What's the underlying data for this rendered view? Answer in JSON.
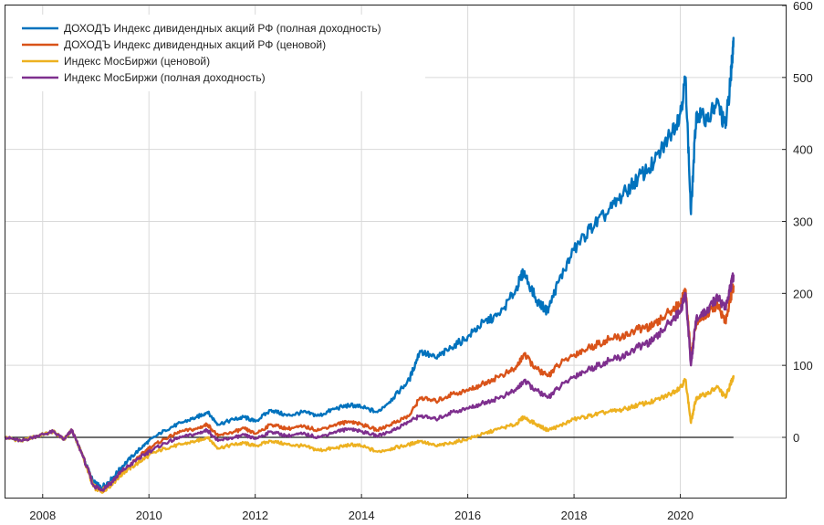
{
  "chart_data": {
    "type": "line",
    "title": "",
    "xlabel": "",
    "ylabel": "",
    "xlim": [
      2007.3,
      2022.0
    ],
    "ylim": [
      -85,
      600
    ],
    "grid": true,
    "legend_position": "top-left",
    "x_ticks": [
      2008,
      2010,
      2012,
      2014,
      2016,
      2018,
      2020
    ],
    "y_ticks": [
      0,
      100,
      200,
      300,
      400,
      500,
      600
    ],
    "reference_line_y": 0,
    "series": [
      {
        "name": "ДОХОДЪ Индекс дивидендных акций РФ (полная доходность)",
        "color": "#0072BD",
        "x": [
          2007.3,
          2007.6,
          2007.9,
          2008.2,
          2008.4,
          2008.55,
          2008.75,
          2008.95,
          2009.1,
          2009.3,
          2009.5,
          2009.8,
          2010.0,
          2010.3,
          2010.6,
          2010.9,
          2011.1,
          2011.3,
          2011.6,
          2011.8,
          2012.0,
          2012.3,
          2012.6,
          2012.9,
          2013.2,
          2013.5,
          2013.8,
          2014.0,
          2014.3,
          2014.6,
          2014.9,
          2015.1,
          2015.4,
          2015.7,
          2016.0,
          2016.3,
          2016.6,
          2016.9,
          2017.05,
          2017.3,
          2017.5,
          2017.7,
          2018.0,
          2018.3,
          2018.6,
          2018.9,
          2019.2,
          2019.5,
          2019.8,
          2020.0,
          2020.1,
          2020.2,
          2020.3,
          2020.5,
          2020.7,
          2020.85,
          2020.95,
          2021.0
        ],
        "values": [
          0,
          -5,
          2,
          8,
          -3,
          10,
          -25,
          -62,
          -70,
          -58,
          -40,
          -18,
          -5,
          10,
          20,
          28,
          35,
          18,
          25,
          28,
          22,
          38,
          30,
          35,
          30,
          40,
          45,
          42,
          35,
          55,
          80,
          120,
          110,
          125,
          140,
          160,
          170,
          205,
          230,
          190,
          175,
          215,
          260,
          290,
          310,
          335,
          360,
          380,
          420,
          450,
          500,
          310,
          450,
          440,
          465,
          430,
          500,
          555
        ]
      },
      {
        "name": "ДОХОДЪ Индекс дивидендных акций РФ (ценовой)",
        "color": "#D95319",
        "x": [
          2007.3,
          2007.6,
          2007.9,
          2008.2,
          2008.4,
          2008.55,
          2008.75,
          2008.95,
          2009.1,
          2009.3,
          2009.5,
          2009.8,
          2010.0,
          2010.3,
          2010.6,
          2010.9,
          2011.1,
          2011.3,
          2011.6,
          2011.8,
          2012.0,
          2012.3,
          2012.6,
          2012.9,
          2013.2,
          2013.5,
          2013.8,
          2014.0,
          2014.3,
          2014.6,
          2014.9,
          2015.1,
          2015.4,
          2015.7,
          2016.0,
          2016.3,
          2016.6,
          2016.9,
          2017.05,
          2017.3,
          2017.5,
          2017.7,
          2018.0,
          2018.3,
          2018.6,
          2018.9,
          2019.2,
          2019.5,
          2019.8,
          2020.0,
          2020.1,
          2020.2,
          2020.3,
          2020.5,
          2020.7,
          2020.85,
          2020.95,
          2021.0
        ],
        "values": [
          0,
          -5,
          2,
          8,
          -3,
          10,
          -25,
          -65,
          -75,
          -63,
          -48,
          -28,
          -15,
          -2,
          8,
          12,
          18,
          2,
          8,
          12,
          5,
          18,
          12,
          15,
          10,
          18,
          22,
          18,
          10,
          20,
          30,
          55,
          50,
          60,
          65,
          75,
          85,
          95,
          115,
          95,
          85,
          100,
          115,
          125,
          135,
          140,
          150,
          155,
          175,
          185,
          205,
          110,
          160,
          170,
          185,
          160,
          195,
          210
        ]
      },
      {
        "name": "Индекс МосБиржи (ценовой)",
        "color": "#EDB120",
        "x": [
          2007.3,
          2007.6,
          2007.9,
          2008.2,
          2008.4,
          2008.55,
          2008.75,
          2008.95,
          2009.1,
          2009.3,
          2009.5,
          2009.8,
          2010.0,
          2010.3,
          2010.6,
          2010.9,
          2011.1,
          2011.3,
          2011.6,
          2011.8,
          2012.0,
          2012.3,
          2012.6,
          2012.9,
          2013.2,
          2013.5,
          2013.8,
          2014.0,
          2014.3,
          2014.6,
          2014.9,
          2015.1,
          2015.4,
          2015.7,
          2016.0,
          2016.3,
          2016.6,
          2016.9,
          2017.05,
          2017.3,
          2017.5,
          2017.7,
          2018.0,
          2018.3,
          2018.6,
          2018.9,
          2019.2,
          2019.5,
          2019.8,
          2020.0,
          2020.1,
          2020.2,
          2020.3,
          2020.5,
          2020.7,
          2020.85,
          2020.95,
          2021.0
        ],
        "values": [
          0,
          -5,
          2,
          8,
          -3,
          10,
          -25,
          -68,
          -75,
          -65,
          -50,
          -35,
          -25,
          -15,
          -10,
          -5,
          0,
          -15,
          -10,
          -8,
          -12,
          -5,
          -10,
          -12,
          -18,
          -15,
          -10,
          -12,
          -20,
          -15,
          -10,
          -5,
          -12,
          -8,
          -2,
          5,
          12,
          18,
          28,
          18,
          10,
          15,
          25,
          30,
          35,
          38,
          45,
          50,
          60,
          70,
          80,
          20,
          55,
          60,
          70,
          55,
          75,
          85
        ]
      },
      {
        "name": "Индекс МосБиржи (полная доходность)",
        "color": "#7E2F8E",
        "x": [
          2007.3,
          2007.6,
          2007.9,
          2008.2,
          2008.4,
          2008.55,
          2008.75,
          2008.95,
          2009.1,
          2009.3,
          2009.5,
          2009.8,
          2010.0,
          2010.3,
          2010.6,
          2010.9,
          2011.1,
          2011.3,
          2011.6,
          2011.8,
          2012.0,
          2012.3,
          2012.6,
          2012.9,
          2013.2,
          2013.5,
          2013.8,
          2014.0,
          2014.3,
          2014.6,
          2014.9,
          2015.1,
          2015.4,
          2015.7,
          2016.0,
          2016.3,
          2016.6,
          2016.9,
          2017.05,
          2017.3,
          2017.5,
          2017.7,
          2018.0,
          2018.3,
          2018.6,
          2018.9,
          2019.2,
          2019.5,
          2019.8,
          2020.0,
          2020.1,
          2020.2,
          2020.3,
          2020.5,
          2020.7,
          2020.85,
          2020.95,
          2021.0
        ],
        "values": [
          0,
          -5,
          2,
          8,
          -3,
          10,
          -25,
          -66,
          -73,
          -62,
          -46,
          -30,
          -20,
          -8,
          0,
          5,
          10,
          -5,
          0,
          3,
          -2,
          8,
          2,
          5,
          0,
          8,
          12,
          8,
          2,
          10,
          22,
          30,
          25,
          35,
          40,
          48,
          55,
          65,
          78,
          65,
          55,
          68,
          85,
          95,
          105,
          112,
          125,
          135,
          160,
          175,
          200,
          100,
          165,
          175,
          195,
          180,
          210,
          225
        ]
      }
    ]
  }
}
